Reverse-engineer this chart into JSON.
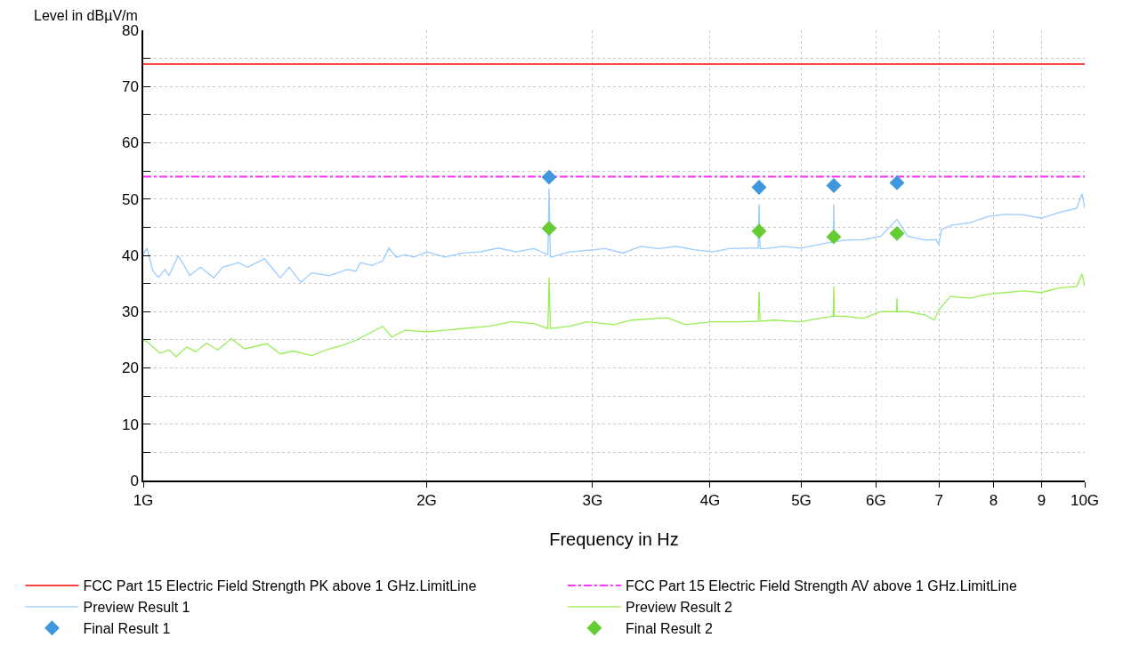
{
  "chart_data": {
    "type": "line",
    "xlabel": "Frequency in Hz",
    "ylabel": "Level in dBµV/m",
    "log": "x",
    "grid": true,
    "legend": "bottom",
    "xlim": [
      1,
      10
    ],
    "xticks": [
      {
        "value": 1,
        "label": "1G"
      },
      {
        "value": 2,
        "label": "2G"
      },
      {
        "value": 3,
        "label": "3G"
      },
      {
        "value": 4,
        "label": "4G"
      },
      {
        "value": 5,
        "label": "5G"
      },
      {
        "value": 6,
        "label": "6G"
      },
      {
        "value": 7,
        "label": "7"
      },
      {
        "value": 8,
        "label": "8"
      },
      {
        "value": 9,
        "label": "9"
      },
      {
        "value": 10,
        "label": "10G"
      }
    ],
    "ylim": [
      0,
      80
    ],
    "yticks": [
      0,
      {
        "value": 5,
        "label": null
      },
      10,
      {
        "value": 15,
        "label": null
      },
      20,
      {
        "value": 25,
        "label": null
      },
      30,
      {
        "value": 35,
        "label": null
      },
      40,
      {
        "value": 45,
        "label": null
      },
      50,
      {
        "value": 55,
        "label": null
      },
      60,
      {
        "value": 65,
        "label": null
      },
      70,
      {
        "value": 75,
        "label": null
      },
      80
    ],
    "ref_lines": [
      {
        "axis": "y",
        "value": 74,
        "label": "FCC Part 15 Electric Field Strength PK above 1 GHz.LimitLine",
        "color": "#ff4444",
        "line_style": "solid"
      },
      {
        "axis": "y",
        "value": 54,
        "label": "FCC Part 15 Electric Field Strength AV above 1 GHz.LimitLine",
        "color": "#ff33ff",
        "line_style": "dashed"
      }
    ],
    "series": [
      {
        "name": "Preview Result 1",
        "marker": "none",
        "color": "#99ccff",
        "x": [
          1.0,
          1.009,
          1.024,
          1.038,
          1.054,
          1.065,
          1.089,
          1.101,
          1.12,
          1.15,
          1.188,
          1.214,
          1.262,
          1.29,
          1.345,
          1.368,
          1.398,
          1.429,
          1.47,
          1.509,
          1.576,
          1.646,
          1.682,
          1.701,
          1.749,
          1.796,
          1.824,
          1.856,
          1.897,
          1.938,
          2.002,
          2.091,
          2.184,
          2.281,
          2.383,
          2.489,
          2.6,
          2.69,
          2.698,
          2.706,
          2.716,
          2.836,
          2.962,
          3.094,
          3.232,
          3.376,
          3.526,
          3.684,
          3.847,
          4.018,
          4.197,
          4.384,
          4.5,
          4.509,
          4.52,
          4.578,
          4.782,
          4.994,
          5.217,
          5.405,
          5.413,
          5.42,
          5.569,
          5.818,
          6.076,
          6.318,
          6.485,
          6.772,
          6.953,
          6.998,
          7.044,
          7.231,
          7.553,
          7.889,
          8.24,
          8.606,
          8.989,
          9.389,
          9.806,
          9.935,
          10.0
        ],
        "values": [
          40.1,
          41.3,
          37.2,
          36.1,
          37.5,
          36.4,
          39.9,
          38.7,
          36.4,
          37.9,
          36.0,
          37.9,
          38.7,
          37.9,
          39.4,
          37.9,
          36.0,
          37.9,
          35.2,
          36.9,
          36.4,
          37.5,
          37.2,
          38.7,
          38.2,
          39.0,
          41.3,
          39.7,
          40.1,
          39.7,
          40.6,
          39.7,
          40.4,
          40.6,
          41.3,
          40.6,
          41.2,
          40.1,
          51.9,
          39.7,
          39.7,
          40.6,
          40.9,
          41.2,
          40.4,
          41.6,
          41.2,
          41.6,
          41.0,
          40.6,
          41.2,
          41.3,
          41.3,
          49.1,
          41.2,
          41.2,
          41.6,
          41.3,
          41.9,
          42.4,
          49.1,
          42.4,
          42.7,
          42.8,
          43.4,
          46.4,
          43.4,
          42.7,
          42.8,
          41.9,
          44.6,
          45.4,
          45.8,
          46.9,
          47.3,
          47.2,
          46.6,
          47.6,
          48.4,
          50.9,
          48.4
        ]
      },
      {
        "name": "Preview Result 2",
        "marker": "none",
        "color": "#99ee55",
        "x": [
          1.0,
          1.009,
          1.024,
          1.042,
          1.065,
          1.084,
          1.112,
          1.137,
          1.167,
          1.2,
          1.24,
          1.282,
          1.353,
          1.398,
          1.444,
          1.509,
          1.576,
          1.628,
          1.682,
          1.796,
          1.836,
          1.897,
          2.002,
          2.091,
          2.184,
          2.332,
          2.462,
          2.6,
          2.69,
          2.698,
          2.706,
          2.836,
          2.962,
          3.162,
          3.303,
          3.603,
          3.764,
          4.018,
          4.289,
          4.5,
          4.509,
          4.52,
          4.678,
          4.994,
          5.217,
          5.405,
          5.413,
          5.42,
          5.569,
          5.818,
          6.076,
          6.31,
          6.318,
          6.325,
          6.485,
          6.772,
          6.922,
          6.998,
          7.2,
          7.553,
          7.889,
          8.24,
          8.606,
          8.989,
          9.389,
          9.806,
          9.935,
          10.0
        ],
        "values": [
          24.9,
          24.7,
          23.7,
          22.6,
          23.2,
          22.0,
          23.7,
          22.9,
          24.4,
          23.2,
          25.2,
          23.4,
          24.3,
          22.5,
          23.0,
          22.2,
          23.4,
          24.0,
          24.9,
          27.4,
          25.5,
          26.7,
          26.4,
          26.7,
          27.0,
          27.4,
          28.2,
          27.9,
          27.0,
          36.0,
          27.0,
          27.4,
          28.2,
          27.7,
          28.5,
          28.9,
          27.7,
          28.2,
          28.2,
          28.3,
          33.6,
          28.3,
          28.5,
          28.2,
          28.8,
          29.2,
          34.5,
          29.2,
          29.2,
          28.8,
          30.0,
          30.0,
          32.4,
          30.0,
          30.0,
          29.4,
          28.5,
          30.3,
          32.7,
          32.4,
          33.1,
          33.4,
          33.7,
          33.4,
          34.2,
          34.5,
          36.7,
          34.5
        ]
      },
      {
        "name": "Final Result 1",
        "type": "scatter",
        "marker": "diamond",
        "color": "#3f97dd",
        "x": [
          2.698,
          4.509,
          5.413,
          6.318
        ],
        "values": [
          53.9,
          52.1,
          52.4,
          52.9
        ]
      },
      {
        "name": "Final Result 2",
        "type": "scatter",
        "marker": "diamond",
        "color": "#66cc33",
        "x": [
          2.698,
          4.509,
          5.413,
          6.318
        ],
        "values": [
          44.8,
          44.3,
          43.3,
          43.9
        ]
      }
    ]
  }
}
